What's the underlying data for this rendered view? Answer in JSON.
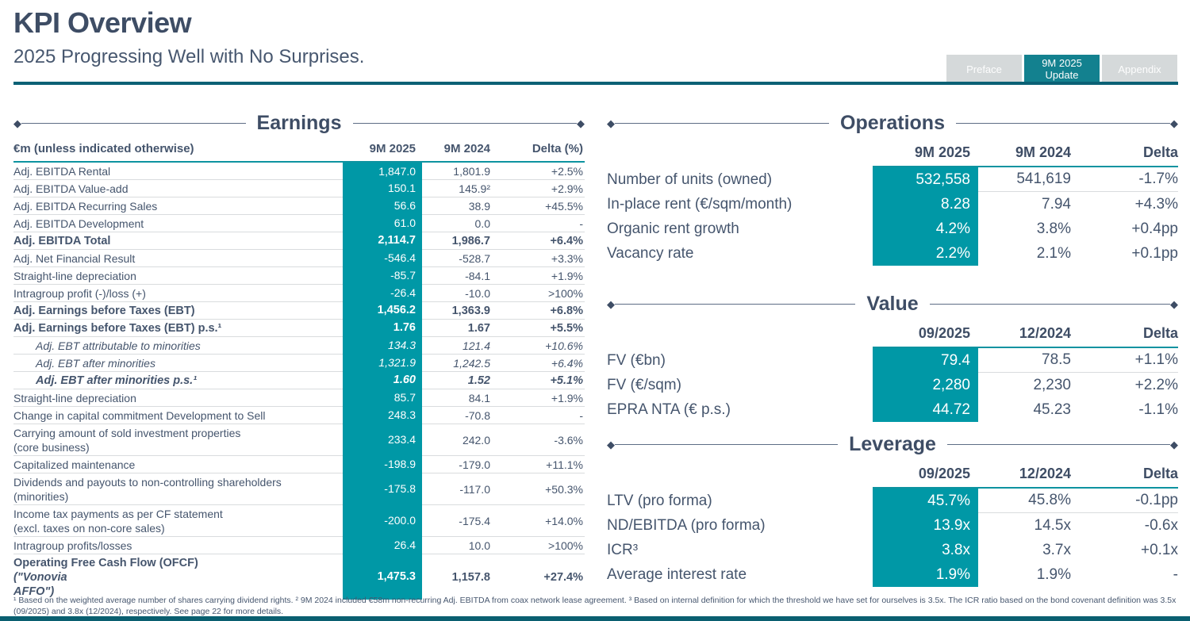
{
  "header": {
    "title": "KPI Overview",
    "subtitle": "2025 Progressing Well with No Surprises.",
    "tabs": [
      {
        "label": "Preface",
        "active": false
      },
      {
        "label": "9M 2025\nUpdate",
        "active": true
      },
      {
        "label": "Appendix",
        "active": false
      }
    ]
  },
  "colors": {
    "teal_cell": "#0098a6",
    "tab_active": "#13818f",
    "divider": "#0b6175",
    "bottom_bar": "#0a5f70",
    "heading_text": "#3e4d65",
    "body_text": "#45556d"
  },
  "earnings": {
    "title": "Earnings",
    "columns": [
      "€m (unless indicated otherwise)",
      "9M 2025",
      "9M 2024",
      "Delta (%)"
    ],
    "rows": [
      {
        "label": "Adj. EBITDA Rental",
        "v2025": "1,847.0",
        "v2024": "1,801.9",
        "delta": "+2.5%",
        "style": "normal"
      },
      {
        "label": "Adj. EBITDA Value-add",
        "v2025": "150.1",
        "v2024": "145.9²",
        "delta": "+2.9%",
        "style": "normal"
      },
      {
        "label": "Adj. EBITDA Recurring Sales",
        "v2025": "56.6",
        "v2024": "38.9",
        "delta": "+45.5%",
        "style": "normal"
      },
      {
        "label": "Adj. EBITDA Development",
        "v2025": "61.0",
        "v2024": "0.0",
        "delta": "-",
        "style": "normal"
      },
      {
        "label": "Adj. EBITDA Total",
        "v2025": "2,114.7",
        "v2024": "1,986.7",
        "delta": "+6.4%",
        "style": "bold"
      },
      {
        "label": "Adj. Net Financial Result",
        "v2025": "-546.4",
        "v2024": "-528.7",
        "delta": "+3.3%",
        "style": "normal"
      },
      {
        "label": "Straight-line depreciation",
        "v2025": "-85.7",
        "v2024": "-84.1",
        "delta": "+1.9%",
        "style": "normal"
      },
      {
        "label": "Intragroup profit (-)/loss (+)",
        "v2025": "-26.4",
        "v2024": "-10.0",
        "delta": ">100%",
        "style": "normal"
      },
      {
        "label": "Adj. Earnings before Taxes (EBT)",
        "v2025": "1,456.2",
        "v2024": "1,363.9",
        "delta": "+6.8%",
        "style": "bold"
      },
      {
        "label": "Adj. Earnings before Taxes (EBT) p.s.¹",
        "v2025": "1.76",
        "v2024": "1.67",
        "delta": "+5.5%",
        "style": "bold"
      },
      {
        "label": "Adj. EBT attributable to minorities",
        "v2025": "134.3",
        "v2024": "121.4",
        "delta": "+10.6%",
        "style": "italic"
      },
      {
        "label": "Adj. EBT after minorities",
        "v2025": "1,321.9",
        "v2024": "1,242.5",
        "delta": "+6.4%",
        "style": "italic"
      },
      {
        "label": "Adj. EBT after minorities p.s.¹",
        "v2025": "1.60",
        "v2024": "1.52",
        "delta": "+5.1%",
        "style": "bold-italic"
      },
      {
        "label": "Straight-line depreciation",
        "v2025": "85.7",
        "v2024": "84.1",
        "delta": "+1.9%",
        "style": "normal"
      },
      {
        "label": "Change in capital commitment Development to Sell",
        "v2025": "248.3",
        "v2024": "-70.8",
        "delta": "-",
        "style": "normal"
      },
      {
        "label": "Carrying amount of sold investment properties\n(core business)",
        "v2025": "233.4",
        "v2024": "242.0",
        "delta": "-3.6%",
        "style": "normal"
      },
      {
        "label": "Capitalized maintenance",
        "v2025": "-198.9",
        "v2024": "-179.0",
        "delta": "+11.1%",
        "style": "normal"
      },
      {
        "label": "Dividends and payouts to non-controlling shareholders\n(minorities)",
        "v2025": "-175.8",
        "v2024": "-117.0",
        "delta": "+50.3%",
        "style": "normal"
      },
      {
        "label": "Income tax payments as per CF statement\n(excl. taxes on non-core sales)",
        "v2025": "-200.0",
        "v2024": "-175.4",
        "delta": "+14.0%",
        "style": "normal"
      },
      {
        "label": "Intragroup profits/losses",
        "v2025": "26.4",
        "v2024": "10.0",
        "delta": ">100%",
        "style": "normal"
      },
      {
        "label": "Operating Free Cash Flow (OFCF) ",
        "label_em": "(\"Vonovia\nAFFO\")",
        "v2025": "1,475.3",
        "v2024": "1,157.8",
        "delta": "+27.4%",
        "style": "bold"
      }
    ]
  },
  "operations": {
    "title": "Operations",
    "columns": [
      "9M 2025",
      "9M 2024",
      "Delta"
    ],
    "rows": [
      {
        "label": "Number of units (owned)",
        "v1": "532,558",
        "v2": "541,619",
        "delta": "-1.7%"
      },
      {
        "label": "In-place rent (€/sqm/month)",
        "v1": "8.28",
        "v2": "7.94",
        "delta": "+4.3%"
      },
      {
        "label": "Organic rent growth",
        "v1": "4.2%",
        "v2": "3.8%",
        "delta": "+0.4pp"
      },
      {
        "label": "Vacancy rate",
        "v1": "2.2%",
        "v2": "2.1%",
        "delta": "+0.1pp"
      }
    ]
  },
  "value": {
    "title": "Value",
    "columns": [
      "09/2025",
      "12/2024",
      "Delta"
    ],
    "rows": [
      {
        "label": "FV (€bn)",
        "v1": "79.4",
        "v2": "78.5",
        "delta": "+1.1%"
      },
      {
        "label": "FV (€/sqm)",
        "v1": "2,280",
        "v2": "2,230",
        "delta": "+2.2%"
      },
      {
        "label": "EPRA NTA (€ p.s.)",
        "v1": "44.72",
        "v2": "45.23",
        "delta": "-1.1%"
      }
    ]
  },
  "leverage": {
    "title": "Leverage",
    "columns": [
      "09/2025",
      "12/2024",
      "Delta"
    ],
    "rows": [
      {
        "label": "LTV (pro forma)",
        "v1": "45.7%",
        "v2": "45.8%",
        "delta": "-0.1pp"
      },
      {
        "label": "ND/EBITDA (pro forma)",
        "v1": "13.9x",
        "v2": "14.5x",
        "delta": "-0.6x"
      },
      {
        "label": "ICR³",
        "v1": "3.8x",
        "v2": "3.7x",
        "delta": "+0.1x"
      },
      {
        "label": "Average interest rate",
        "v1": "1.9%",
        "v2": "1.9%",
        "delta": "-"
      }
    ]
  },
  "footnote": "¹ Based on the weighted average number of shares carrying dividend rights. ² 9M 2024 included €58m non-recurring Adj. EBITDA from coax network lease agreement. ³ Based on internal definition for which the threshold we have set for ourselves is 3.5x. The ICR ratio based on the bond covenant definition was 3.5x (09/2025) and 3.8x (12/2024), respectively. See page 22 for more details."
}
